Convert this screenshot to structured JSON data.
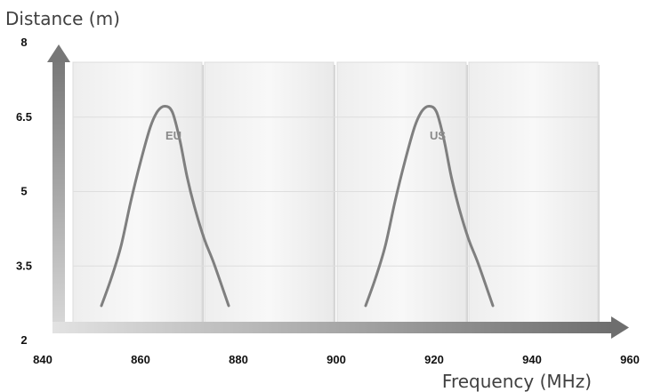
{
  "chart_data": {
    "type": "line",
    "xlabel": "Frequency (MHz)",
    "ylabel": "Distance (m)",
    "xlim": [
      840,
      960
    ],
    "ylim": [
      2,
      8
    ],
    "x_ticks": [
      "840",
      "860",
      "880",
      "900",
      "920",
      "940",
      "960"
    ],
    "y_ticks": [
      "2",
      "3.5",
      "5",
      "6.5",
      "8"
    ],
    "grid": true,
    "series": [
      {
        "name": "EU",
        "color": "#7f7f7f",
        "label_at": {
          "x": 866,
          "y": 6.05
        },
        "points": [
          {
            "x": 852,
            "y": 2.7
          },
          {
            "x": 854,
            "y": 3.25
          },
          {
            "x": 856,
            "y": 3.9
          },
          {
            "x": 858,
            "y": 4.8
          },
          {
            "x": 860,
            "y": 5.6
          },
          {
            "x": 862,
            "y": 6.3
          },
          {
            "x": 863.5,
            "y": 6.62
          },
          {
            "x": 865,
            "y": 6.72
          },
          {
            "x": 866.5,
            "y": 6.6
          },
          {
            "x": 868,
            "y": 6.05
          },
          {
            "x": 869.5,
            "y": 5.3
          },
          {
            "x": 871,
            "y": 4.7
          },
          {
            "x": 873,
            "y": 4.05
          },
          {
            "x": 875,
            "y": 3.55
          },
          {
            "x": 878,
            "y": 2.7
          }
        ]
      },
      {
        "name": "US",
        "color": "#7f7f7f",
        "label_at": {
          "x": 920,
          "y": 6.05
        },
        "points": [
          {
            "x": 906,
            "y": 2.7
          },
          {
            "x": 908,
            "y": 3.25
          },
          {
            "x": 910,
            "y": 3.9
          },
          {
            "x": 912,
            "y": 4.8
          },
          {
            "x": 914,
            "y": 5.6
          },
          {
            "x": 916,
            "y": 6.3
          },
          {
            "x": 917.5,
            "y": 6.62
          },
          {
            "x": 919,
            "y": 6.72
          },
          {
            "x": 920.5,
            "y": 6.6
          },
          {
            "x": 922,
            "y": 6.05
          },
          {
            "x": 923.5,
            "y": 5.3
          },
          {
            "x": 925,
            "y": 4.7
          },
          {
            "x": 927,
            "y": 4.05
          },
          {
            "x": 929,
            "y": 3.55
          },
          {
            "x": 932,
            "y": 2.7
          }
        ]
      }
    ]
  }
}
